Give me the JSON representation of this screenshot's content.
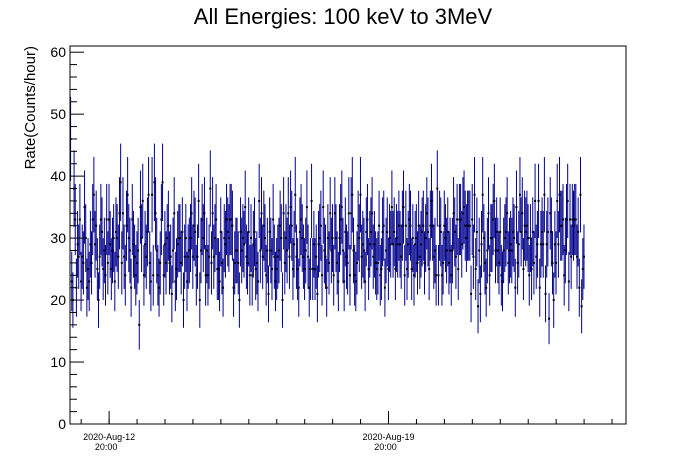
{
  "chart_data": {
    "type": "scatter",
    "title": "All Energies:  100 keV to 3MeV",
    "ylabel": "Rate(Counts/hour)",
    "xlabel": "",
    "ylim": [
      0,
      61
    ],
    "xlim": [
      -1.4,
      18.5
    ],
    "yticks": [
      0,
      10,
      20,
      30,
      40,
      50,
      60
    ],
    "yticklabels": [
      "0",
      "10",
      "20",
      "30",
      "40",
      "50",
      "60"
    ],
    "xticks": [
      {
        "value": 0,
        "date": "2020-Aug-12",
        "time": "20:00"
      },
      {
        "value": 10,
        "date": "2020-Aug-19",
        "time": "20:00"
      }
    ],
    "grid": false,
    "legend": "none",
    "marker": "point with vertical error bars",
    "series_color": "#00008b",
    "points_per_day": 24,
    "series": [
      {
        "values": [
          46,
          23,
          20,
          38,
          33,
          22,
          29,
          27,
          33,
          23,
          27,
          26,
          35,
          30,
          22,
          25,
          23,
          29,
          26,
          33,
          37,
          29,
          32,
          25,
          20,
          27,
          33,
          31,
          25,
          28,
          24,
          33,
          26,
          33,
          29,
          25,
          28,
          30,
          23,
          31,
          30,
          27,
          34,
          39,
          26,
          34,
          27,
          24,
          32,
          37,
          30,
          28,
          22,
          33,
          29,
          27,
          24,
          26,
          28,
          16,
          35,
          30,
          36,
          24,
          29,
          27,
          31,
          37,
          26,
          23,
          37,
          24,
          39,
          34,
          28,
          24,
          22,
          26,
          33,
          39,
          24,
          29,
          26,
          30,
          32,
          26,
          27,
          21,
          28,
          34,
          23,
          25,
          29,
          30,
          30,
          26,
          31,
          20,
          27,
          30,
          23,
          27,
          28,
          30,
          34,
          27,
          32,
          31,
          24,
          27,
          36,
          20,
          28,
          33,
          30,
          34,
          24,
          28,
          24,
          27,
          38,
          26,
          34,
          27,
          30,
          33,
          25,
          25,
          23,
          31,
          26,
          22,
          30,
          29,
          33,
          31,
          30,
          33,
          33,
          32,
          22,
          26,
          28,
          28,
          26,
          20,
          31,
          28,
          30,
          29,
          35,
          27,
          26,
          31,
          24,
          30,
          24,
          29,
          31,
          25,
          26,
          23,
          36,
          28,
          34,
          27,
          32,
          30,
          24,
          28,
          21,
          31,
          28,
          25,
          33,
          27,
          23,
          25,
          27,
          28,
          32,
          30,
          20,
          34,
          26,
          30,
          28,
          34,
          27,
          35,
          32,
          25,
          29,
          37,
          27,
          25,
          22,
          31,
          33,
          30,
          27,
          25,
          28,
          35,
          27,
          22,
          25,
          36,
          25,
          29,
          25,
          27,
          21,
          29,
          30,
          32,
          24,
          35,
          28,
          27,
          22,
          30,
          26,
          34,
          28,
          30,
          24,
          34,
          30,
          26,
          23,
          30,
          33,
          35,
          28,
          23,
          31,
          27,
          26,
          34,
          24,
          34,
          37,
          28,
          24,
          23,
          26,
          32,
          30,
          37,
          27,
          29,
          28,
          23,
          31,
          33,
          25,
          29,
          31,
          34,
          27,
          29,
          26,
          25,
          26,
          32,
          24,
          25,
          31,
          32,
          22,
          28,
          31,
          25,
          30,
          29,
          35,
          29,
          31,
          25,
          30,
          29,
          32,
          29,
          27,
          32,
          35,
          24,
          32,
          25,
          29,
          33,
          32,
          25,
          30,
          24,
          29,
          30,
          26,
          32,
          27,
          29,
          31,
          32,
          26,
          30,
          34,
          31,
          25,
          32,
          36,
          32,
          27,
          28,
          24,
          38,
          24,
          32,
          31,
          24,
          26,
          32,
          30,
          28,
          31,
          26,
          28,
          24,
          28,
          34,
          31,
          27,
          33,
          25,
          33,
          33,
          29,
          34,
          35,
          32,
          30,
          32,
          32,
          32,
          21,
          33,
          27,
          37,
          25,
          31,
          19,
          28,
          21,
          29,
          37,
          30,
          26,
          22,
          28,
          34,
          24,
          30,
          30,
          33,
          36,
          28,
          31,
          28,
          26,
          31,
          24,
          23,
          28,
          30,
          31,
          34,
          26,
          28,
          29,
          28,
          31,
          30,
          22,
          35,
          26,
          29,
          37,
          31,
          34,
          25,
          32,
          31,
          32,
          30,
          24,
          30,
          25,
          31,
          26,
          36,
          27,
          29,
          36,
          22,
          29,
          31,
          29,
          37,
          21,
          29,
          31,
          17,
          34,
          31,
          26,
          20,
          29,
          26,
          36,
          29,
          37,
          32,
          32,
          33,
          24,
          28,
          33,
          36,
          23,
          33,
          27,
          33,
          32,
          33,
          33,
          27,
          31,
          22,
          37,
          19,
          25,
          27
        ]
      }
    ]
  }
}
